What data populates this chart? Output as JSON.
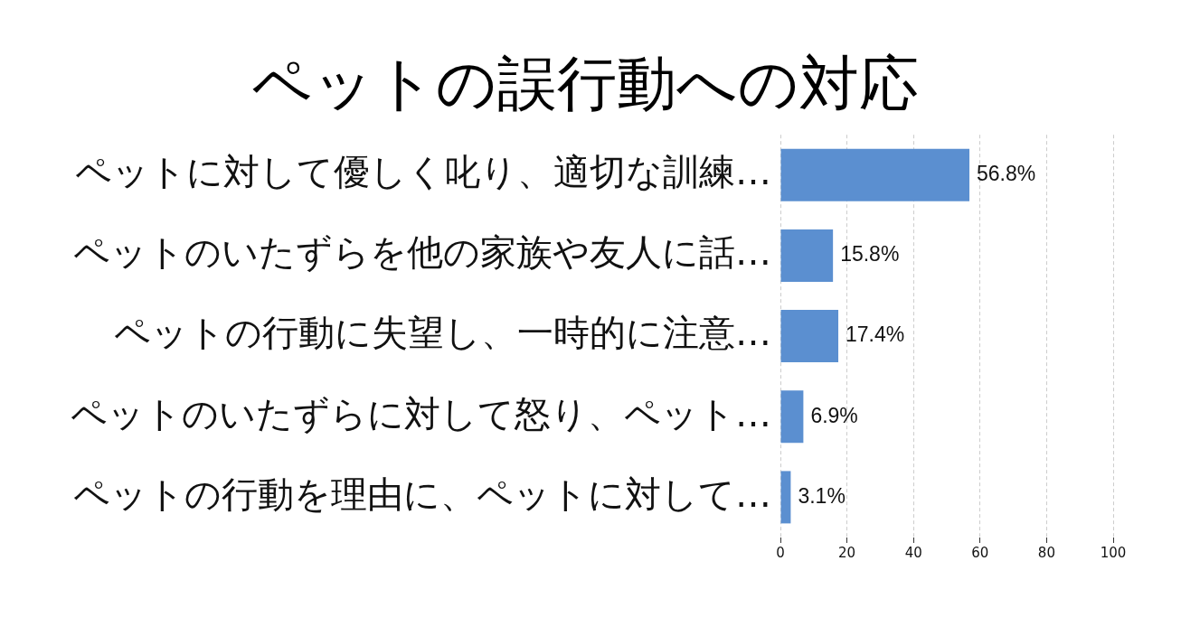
{
  "chart_data": {
    "type": "bar",
    "orientation": "horizontal",
    "title": "ペットの誤行動への対応",
    "categories": [
      "ペットに対して優しく叱り、適切な訓練…",
      "ペットのいたずらを他の家族や友人に話…",
      "ペットの行動に失望し、一時的に注意…",
      "ペットのいたずらに対して怒り、ペット…",
      "ペットの行動を理由に、ペットに対して…"
    ],
    "values": [
      56.8,
      15.8,
      17.4,
      6.9,
      3.1
    ],
    "value_labels": [
      "56.8%",
      "15.8%",
      "17.4%",
      "6.9%",
      "3.1%"
    ],
    "color": "#5b8fd0",
    "xlim": [
      0,
      100
    ],
    "xticks": [
      0,
      20,
      40,
      60,
      80,
      100
    ],
    "grid": "x",
    "legend": false
  }
}
